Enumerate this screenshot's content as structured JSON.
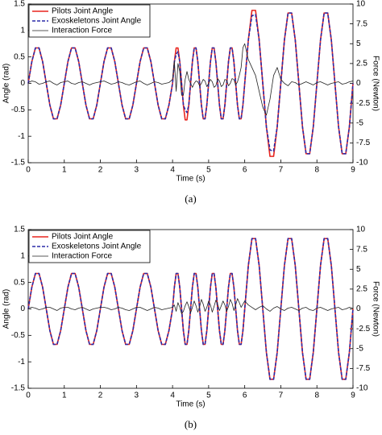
{
  "chart_data": [
    {
      "type": "line",
      "caption": "(a)",
      "xlabel": "Time (s)",
      "ylabel": "Angle (rad)",
      "y2label": "Force (Newton)",
      "legend": "upper left",
      "xlim": [
        0,
        9
      ],
      "xticks": [
        0,
        1,
        2,
        3,
        4,
        5,
        6,
        7,
        8,
        9
      ],
      "ylim": [
        -1.5,
        1.5
      ],
      "yticks": [
        -1.5,
        -1,
        -0.5,
        0,
        0.5,
        1,
        1.5
      ],
      "y2lim": [
        -10,
        10
      ],
      "y2ticks": [
        -10,
        -7.5,
        -5,
        -2.5,
        0,
        2.5,
        5,
        7.5,
        10
      ],
      "x": [
        0,
        0.1,
        0.2,
        0.3,
        0.4,
        0.5,
        0.6,
        0.7,
        0.8,
        0.9,
        1,
        1.1,
        1.2,
        1.3,
        1.4,
        1.5,
        1.6,
        1.7,
        1.8,
        1.9,
        2,
        2.1,
        2.2,
        2.3,
        2.4,
        2.5,
        2.6,
        2.7,
        2.8,
        2.9,
        3,
        3.1,
        3.2,
        3.3,
        3.4,
        3.5,
        3.6,
        3.7,
        3.8,
        3.9,
        4,
        4.05,
        4.1,
        4.15,
        4.2,
        4.25,
        4.3,
        4.35,
        4.4,
        4.45,
        4.5,
        4.55,
        4.6,
        4.65,
        4.7,
        4.75,
        4.8,
        4.85,
        4.9,
        4.95,
        5,
        5.05,
        5.1,
        5.15,
        5.2,
        5.25,
        5.3,
        5.35,
        5.4,
        5.45,
        5.5,
        5.55,
        5.6,
        5.65,
        5.7,
        5.75,
        5.8,
        5.85,
        5.9,
        5.95,
        6,
        6.1,
        6.2,
        6.3,
        6.4,
        6.5,
        6.6,
        6.7,
        6.8,
        6.9,
        7,
        7.1,
        7.2,
        7.3,
        7.4,
        7.5,
        7.6,
        7.7,
        7.8,
        7.9,
        8,
        8.1,
        8.2,
        8.3,
        8.4,
        8.5,
        8.6,
        8.7,
        8.8,
        8.9,
        9
      ],
      "series": [
        {
          "name": "Pilots Joint Angle",
          "color": "#e8251f",
          "linestyle": "solid",
          "values": [
            0,
            0.41,
            0.67,
            0.67,
            0.41,
            0,
            -0.41,
            -0.67,
            -0.67,
            -0.41,
            0,
            0.41,
            0.67,
            0.67,
            0.41,
            0,
            -0.41,
            -0.67,
            -0.67,
            -0.41,
            0,
            0.41,
            0.67,
            0.67,
            0.41,
            0,
            -0.41,
            -0.67,
            -0.67,
            -0.41,
            0,
            0.41,
            0.67,
            0.67,
            0.41,
            0,
            -0.41,
            -0.67,
            -0.67,
            -0.41,
            0,
            0.41,
            0.67,
            0.67,
            0.41,
            0,
            -0.41,
            -0.69,
            -0.69,
            -0.41,
            0,
            0.41,
            0.67,
            0.67,
            0.41,
            0,
            -0.41,
            -0.67,
            -0.67,
            -0.41,
            0,
            0.41,
            0.67,
            0.67,
            0.41,
            0,
            -0.41,
            -0.67,
            -0.67,
            -0.41,
            0,
            0.41,
            0.67,
            0.67,
            0.41,
            0,
            -0.41,
            -0.67,
            -0.67,
            -0.41,
            0,
            0.82,
            1.38,
            1.38,
            0.82,
            0,
            -0.82,
            -1.38,
            -1.38,
            -0.82,
            0,
            0.82,
            1.33,
            1.33,
            0.82,
            0,
            -0.82,
            -1.33,
            -1.33,
            -0.82,
            0,
            0.82,
            1.33,
            1.33,
            0.82,
            0,
            -0.82,
            -1.33,
            -1.33,
            -0.82,
            0
          ]
        },
        {
          "name": "Exoskeletons Joint Angle",
          "color": "#2b2ba8",
          "linestyle": "dashed",
          "values": [
            0,
            0.41,
            0.67,
            0.67,
            0.41,
            0,
            -0.41,
            -0.67,
            -0.67,
            -0.41,
            0,
            0.41,
            0.67,
            0.67,
            0.41,
            0,
            -0.41,
            -0.67,
            -0.67,
            -0.41,
            0,
            0.41,
            0.67,
            0.67,
            0.41,
            0,
            -0.41,
            -0.67,
            -0.67,
            -0.41,
            0,
            0.41,
            0.67,
            0.67,
            0.41,
            0,
            -0.41,
            -0.67,
            -0.67,
            -0.41,
            0,
            0.41,
            0.55,
            0.6,
            0.41,
            0,
            -0.41,
            -0.5,
            -0.55,
            -0.41,
            0,
            0.41,
            0.67,
            0.67,
            0.41,
            0,
            -0.41,
            -0.67,
            -0.67,
            -0.41,
            0,
            0.41,
            0.67,
            0.67,
            0.41,
            0,
            -0.41,
            -0.67,
            -0.67,
            -0.41,
            0,
            0.41,
            0.67,
            0.67,
            0.41,
            0,
            -0.41,
            -0.67,
            -0.67,
            -0.41,
            0,
            0.82,
            1.28,
            1.3,
            0.82,
            0,
            -0.82,
            -1.26,
            -1.28,
            -0.82,
            0,
            0.82,
            1.33,
            1.33,
            0.82,
            0,
            -0.82,
            -1.33,
            -1.33,
            -0.82,
            0,
            0.82,
            1.33,
            1.33,
            0.82,
            0,
            -0.82,
            -1.33,
            -1.33,
            -0.82,
            0
          ]
        },
        {
          "name": "Interaction Force",
          "color": "#222222",
          "linestyle": "thin",
          "axis": "y2",
          "values": [
            0.1,
            0.3,
            0.2,
            -0.1,
            0,
            0.2,
            0.3,
            0,
            -0.2,
            0.1,
            0.2,
            0.3,
            0,
            -0.1,
            0.1,
            0.2,
            0,
            -0.2,
            0,
            0.1,
            0.2,
            0.3,
            0.1,
            -0.1,
            0,
            0.2,
            0.1,
            -0.1,
            -0.2,
            0,
            0.2,
            0.3,
            0,
            -0.2,
            0,
            0.2,
            0.1,
            -0.1,
            0,
            0.1,
            0.5,
            2.8,
            -1,
            2.5,
            1.5,
            -1.5,
            -1.5,
            0.5,
            1.5,
            0.5,
            0,
            -0.5,
            0,
            0.3,
            0.2,
            -0.3,
            0,
            0.5,
            0.3,
            -0.4,
            0,
            0.5,
            0.2,
            -0.5,
            -0.3,
            0.6,
            0.3,
            -0.4,
            -0.2,
            0.5,
            0.4,
            -0.3,
            0,
            0.6,
            0.5,
            -0.2,
            0.2,
            1,
            2,
            4.5,
            5,
            3,
            2,
            1,
            -1,
            -3,
            -4,
            -2,
            1,
            2,
            0.5,
            0,
            -0.3,
            0.2,
            0.1,
            -0.2,
            0,
            0.2,
            0,
            -0.2,
            0.1,
            0.2,
            0,
            -0.2,
            0,
            0.1,
            0.2,
            -0.1,
            0,
            0.2,
            0.3
          ]
        }
      ]
    },
    {
      "type": "line",
      "caption": "(b)",
      "xlabel": "Time (s)",
      "ylabel": "Angle (rad)",
      "y2label": "Force (Newton)",
      "legend": "upper left",
      "xlim": [
        0,
        9
      ],
      "xticks": [
        0,
        1,
        2,
        3,
        4,
        5,
        6,
        7,
        8,
        9
      ],
      "ylim": [
        -1.5,
        1.5
      ],
      "yticks": [
        -1.5,
        -1,
        -0.5,
        0,
        0.5,
        1,
        1.5
      ],
      "y2lim": [
        -10,
        10
      ],
      "y2ticks": [
        -10,
        -7.5,
        -5,
        -2.5,
        0,
        2.5,
        5,
        7.5,
        10
      ],
      "x": [
        0,
        0.1,
        0.2,
        0.3,
        0.4,
        0.5,
        0.6,
        0.7,
        0.8,
        0.9,
        1,
        1.1,
        1.2,
        1.3,
        1.4,
        1.5,
        1.6,
        1.7,
        1.8,
        1.9,
        2,
        2.1,
        2.2,
        2.3,
        2.4,
        2.5,
        2.6,
        2.7,
        2.8,
        2.9,
        3,
        3.1,
        3.2,
        3.3,
        3.4,
        3.5,
        3.6,
        3.7,
        3.8,
        3.9,
        4,
        4.05,
        4.1,
        4.15,
        4.2,
        4.25,
        4.3,
        4.35,
        4.4,
        4.45,
        4.5,
        4.55,
        4.6,
        4.65,
        4.7,
        4.75,
        4.8,
        4.85,
        4.9,
        4.95,
        5,
        5.05,
        5.1,
        5.15,
        5.2,
        5.25,
        5.3,
        5.35,
        5.4,
        5.45,
        5.5,
        5.55,
        5.6,
        5.65,
        5.7,
        5.75,
        5.8,
        5.85,
        5.9,
        5.95,
        6,
        6.1,
        6.2,
        6.3,
        6.4,
        6.5,
        6.6,
        6.7,
        6.8,
        6.9,
        7,
        7.1,
        7.2,
        7.3,
        7.4,
        7.5,
        7.6,
        7.7,
        7.8,
        7.9,
        8,
        8.1,
        8.2,
        8.3,
        8.4,
        8.5,
        8.6,
        8.7,
        8.8,
        8.9,
        9
      ],
      "series": [
        {
          "name": "Pilots Joint Angle",
          "color": "#e8251f",
          "linestyle": "solid",
          "values": [
            0,
            0.41,
            0.67,
            0.67,
            0.41,
            0,
            -0.41,
            -0.67,
            -0.67,
            -0.41,
            0,
            0.41,
            0.67,
            0.67,
            0.41,
            0,
            -0.41,
            -0.67,
            -0.67,
            -0.41,
            0,
            0.41,
            0.67,
            0.67,
            0.41,
            0,
            -0.41,
            -0.67,
            -0.67,
            -0.41,
            0,
            0.41,
            0.67,
            0.67,
            0.41,
            0,
            -0.41,
            -0.67,
            -0.67,
            -0.41,
            0,
            0.41,
            0.67,
            0.67,
            0.41,
            0,
            -0.41,
            -0.67,
            -0.67,
            -0.41,
            0,
            0.41,
            0.67,
            0.67,
            0.41,
            0,
            -0.41,
            -0.67,
            -0.67,
            -0.41,
            0,
            0.41,
            0.67,
            0.67,
            0.41,
            0,
            -0.41,
            -0.67,
            -0.67,
            -0.41,
            0,
            0.41,
            0.67,
            0.67,
            0.41,
            0,
            -0.41,
            -0.67,
            -0.67,
            -0.41,
            0,
            0.82,
            1.33,
            1.33,
            0.82,
            0,
            -0.82,
            -1.33,
            -1.33,
            -0.82,
            0,
            0.82,
            1.33,
            1.33,
            0.82,
            0,
            -0.82,
            -1.33,
            -1.33,
            -0.82,
            0,
            0.82,
            1.33,
            1.33,
            0.82,
            0,
            -0.82,
            -1.33,
            -1.33,
            -0.82,
            0
          ]
        },
        {
          "name": "Exoskeletons Joint Angle",
          "color": "#2b2ba8",
          "linestyle": "dashed",
          "values": [
            0,
            0.41,
            0.67,
            0.67,
            0.41,
            0,
            -0.41,
            -0.67,
            -0.67,
            -0.41,
            0,
            0.41,
            0.67,
            0.67,
            0.41,
            0,
            -0.41,
            -0.67,
            -0.67,
            -0.41,
            0,
            0.41,
            0.67,
            0.67,
            0.41,
            0,
            -0.41,
            -0.67,
            -0.67,
            -0.41,
            0,
            0.41,
            0.67,
            0.67,
            0.41,
            0,
            -0.41,
            -0.67,
            -0.67,
            -0.41,
            0,
            0.41,
            0.67,
            0.67,
            0.41,
            0,
            -0.41,
            -0.67,
            -0.67,
            -0.41,
            0,
            0.41,
            0.67,
            0.67,
            0.41,
            0,
            -0.41,
            -0.67,
            -0.67,
            -0.41,
            0,
            0.41,
            0.67,
            0.67,
            0.41,
            0,
            -0.41,
            -0.67,
            -0.67,
            -0.41,
            0,
            0.41,
            0.67,
            0.67,
            0.41,
            0,
            -0.41,
            -0.67,
            -0.67,
            -0.41,
            0,
            0.82,
            1.33,
            1.33,
            0.82,
            0,
            -0.82,
            -1.33,
            -1.33,
            -0.82,
            0,
            0.82,
            1.33,
            1.33,
            0.82,
            0,
            -0.82,
            -1.33,
            -1.33,
            -0.82,
            0,
            0.82,
            1.33,
            1.33,
            0.82,
            0,
            -0.82,
            -1.33,
            -1.33,
            -0.82,
            0
          ]
        },
        {
          "name": "Interaction Force",
          "color": "#222222",
          "linestyle": "thin",
          "axis": "y2",
          "values": [
            0.1,
            0.2,
            0.1,
            -0.1,
            0,
            0.2,
            0.2,
            0,
            -0.2,
            0.1,
            0.2,
            0.2,
            0,
            -0.1,
            0.1,
            0.2,
            0,
            -0.2,
            0,
            0.1,
            0.2,
            0.2,
            0.1,
            -0.1,
            0,
            0.2,
            0.1,
            -0.1,
            -0.2,
            0,
            0.2,
            0.2,
            0,
            -0.2,
            0,
            0.2,
            0.1,
            -0.1,
            0,
            0.1,
            0.2,
            0.5,
            -0.3,
            0.8,
            0.2,
            -0.6,
            -0.3,
            0.4,
            0.9,
            0.3,
            -0.5,
            0.2,
            1,
            0.4,
            -0.4,
            0.3,
            1.2,
            0.6,
            -0.3,
            0.2,
            1,
            0.5,
            -0.4,
            0.3,
            1.1,
            0.6,
            -0.2,
            0.4,
            1,
            0.5,
            -0.3,
            0.3,
            1.2,
            0.7,
            -0.2,
            0.5,
            1.3,
            0.8,
            0.2,
            0.6,
            1,
            0.5,
            0.2,
            -0.1,
            0.2,
            0.4,
            0,
            -0.3,
            0.1,
            0.3,
            0,
            -0.2,
            0.1,
            0.2,
            0,
            -0.2,
            0.1,
            0.2,
            -0.1,
            -0.2,
            0.1,
            0.2,
            0,
            -0.2,
            0,
            0.1,
            0.2,
            -0.1,
            0,
            0.2,
            0.1
          ]
        }
      ]
    }
  ]
}
